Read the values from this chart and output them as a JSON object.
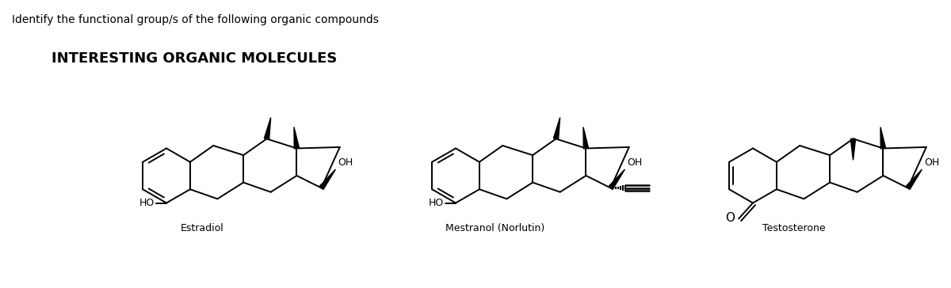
{
  "title_question": "Identify the functional group/s of the following organic compounds",
  "subtitle": "INTERESTING ORGANIC MOLECULES",
  "molecule_labels": [
    "Estradiol",
    "Mestranol (Norlutin)",
    "Testosterone"
  ],
  "background_color": "#ffffff",
  "text_color": "#000000",
  "fig_width": 12.0,
  "fig_height": 3.64,
  "dpi": 100,
  "lw": 1.4
}
